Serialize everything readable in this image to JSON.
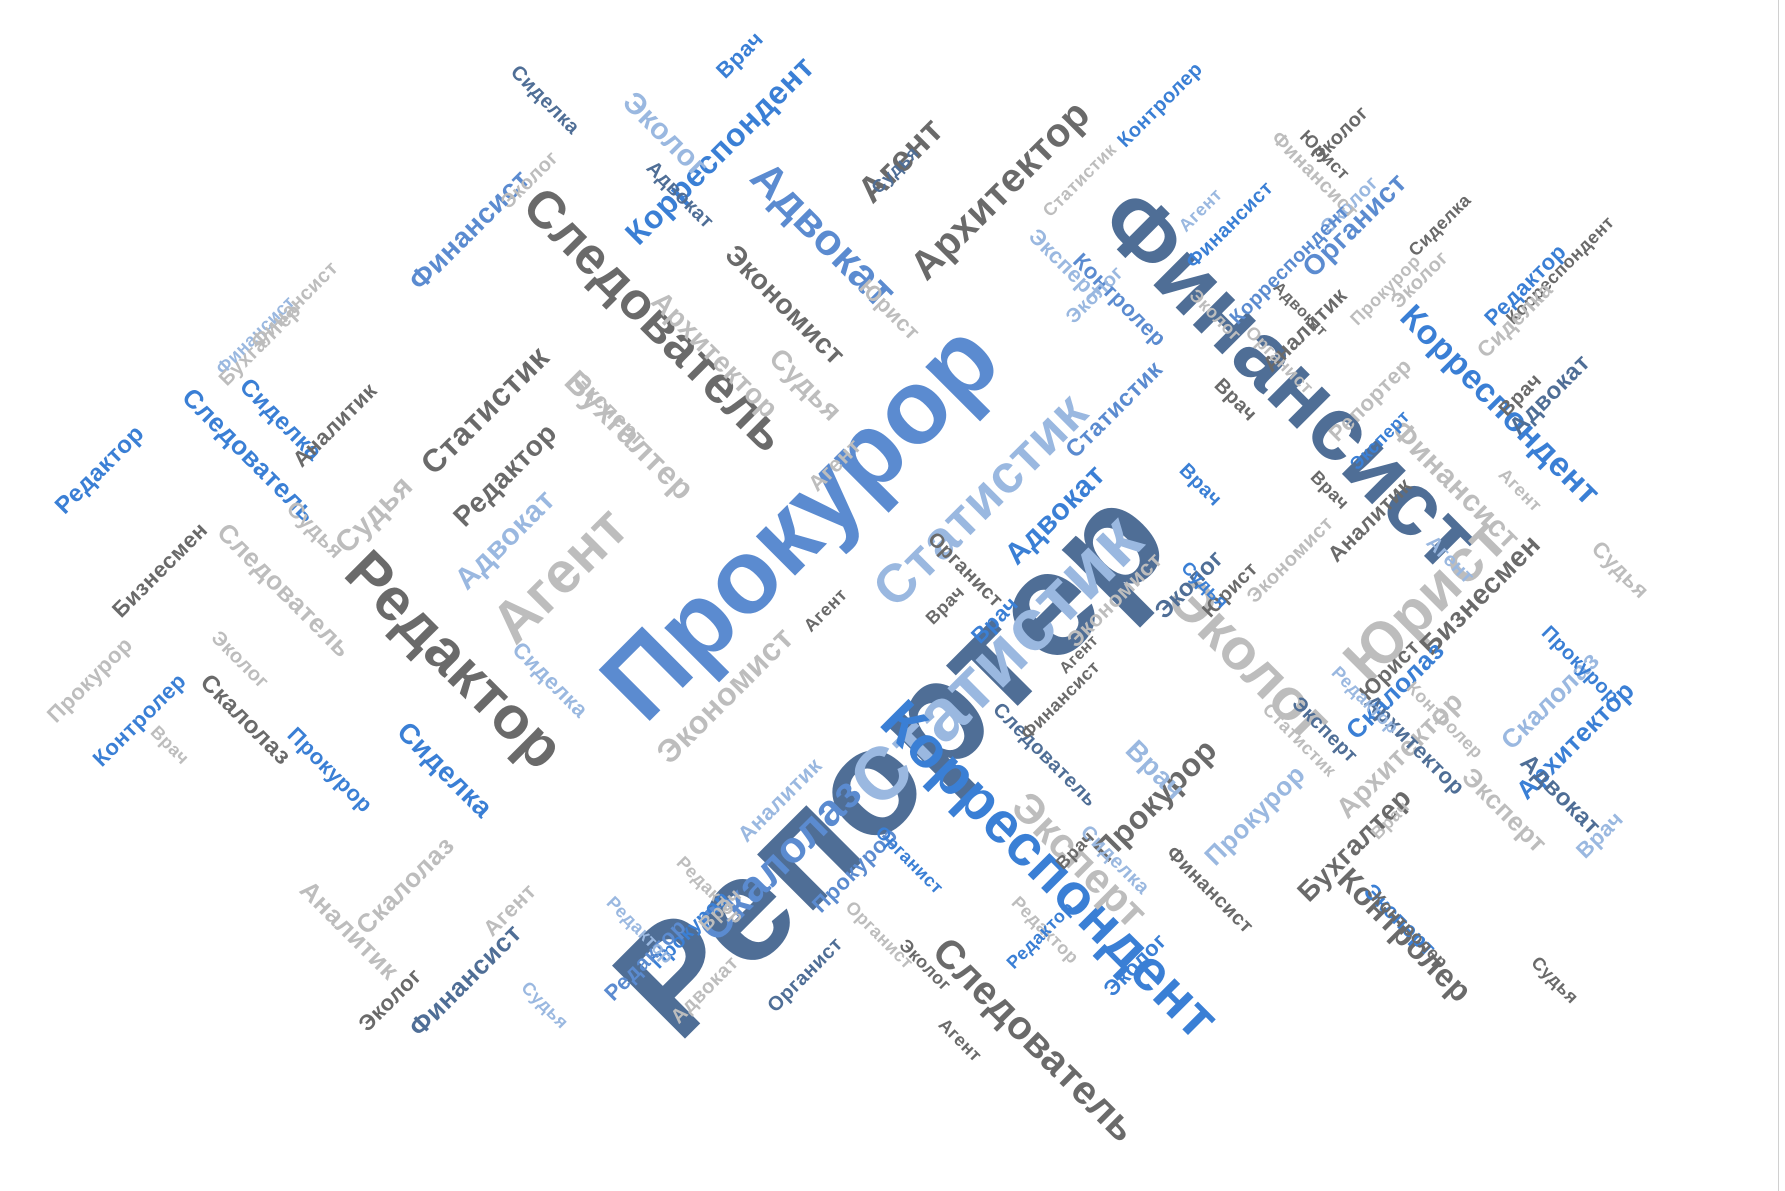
{
  "palette": {
    "blue_bright": "#3a7fd5",
    "blue_mid": "#5b8bd0",
    "blue_light": "#9ab8e0",
    "slate": "#4f6e96",
    "gray_dark": "#6a6a6a",
    "gray_mid": "#8a8a8a",
    "gray_light": "#bdbdbd",
    "background": "#ffffff"
  },
  "words": [
    {
      "text": "Репортер"
    },
    {
      "text": "Прокурор"
    },
    {
      "text": "Финансист"
    },
    {
      "text": "Статистик"
    },
    {
      "text": "Статистик"
    },
    {
      "text": "Корреспондент"
    },
    {
      "text": "Редактор"
    },
    {
      "text": "Следователь"
    },
    {
      "text": "Агент"
    },
    {
      "text": "Эколог"
    },
    {
      "text": "Юрист"
    },
    {
      "text": "Скалолаз"
    },
    {
      "text": "Эксперт"
    },
    {
      "text": "Архитектор"
    },
    {
      "text": "Адвокат"
    },
    {
      "text": "Агент"
    },
    {
      "text": "Корреспондент"
    },
    {
      "text": "Следователь"
    },
    {
      "text": "Экономист"
    },
    {
      "text": "Бухгалтер"
    },
    {
      "text": "Финансист"
    },
    {
      "text": "Корреспондент"
    },
    {
      "text": "Контролер"
    },
    {
      "text": "Прокурор"
    },
    {
      "text": "Органист"
    },
    {
      "text": "Адвокат"
    },
    {
      "text": "Статистик"
    },
    {
      "text": "Экономист"
    },
    {
      "text": "Архитектор"
    },
    {
      "text": "Финансист"
    },
    {
      "text": "Бизнесмен"
    },
    {
      "text": "Бизнесмен"
    },
    {
      "text": "Финансист"
    },
    {
      "text": "Архитектор"
    },
    {
      "text": "Сиделка"
    },
    {
      "text": "Редактор"
    },
    {
      "text": "Скалолаз"
    },
    {
      "text": "Следователь"
    },
    {
      "text": "Скалолаз"
    },
    {
      "text": "Аналитик"
    },
    {
      "text": "Судья"
    },
    {
      "text": "Эколог"
    },
    {
      "text": "Архитектор"
    },
    {
      "text": "Врач"
    },
    {
      "text": "Бухгалтер"
    },
    {
      "text": "Эксперт"
    },
    {
      "text": "Скалолаз"
    },
    {
      "text": "Репортер"
    },
    {
      "text": "Адвокат"
    },
    {
      "text": "Юрист"
    },
    {
      "text": "Финансист"
    },
    {
      "text": "Эколог"
    },
    {
      "text": "Судья"
    },
    {
      "text": "Прокурор"
    },
    {
      "text": "Финансист"
    },
    {
      "text": "Сиделка"
    },
    {
      "text": "Следователь"
    },
    {
      "text": "Сиделка"
    },
    {
      "text": "Редактор"
    },
    {
      "text": "Контролер"
    },
    {
      "text": "Аналитик"
    },
    {
      "text": "Эколог"
    },
    {
      "text": "Статистик"
    },
    {
      "text": "Адвокат"
    },
    {
      "text": "Судья"
    },
    {
      "text": "Прокурор"
    },
    {
      "text": "Агент"
    },
    {
      "text": "Адвокат"
    },
    {
      "text": "Органист"
    },
    {
      "text": "Скалолаз"
    },
    {
      "text": "Прокурор"
    },
    {
      "text": "Прокурор"
    },
    {
      "text": "Эксперт"
    },
    {
      "text": "Эксперт"
    },
    {
      "text": "Судья"
    },
    {
      "text": "Корреспондент"
    },
    {
      "text": "Контролер"
    },
    {
      "text": "Эксперт"
    },
    {
      "text": "Архитектор"
    },
    {
      "text": "Юрист"
    },
    {
      "text": "Эколог"
    },
    {
      "text": "Аналитик"
    },
    {
      "text": "Сиделка"
    },
    {
      "text": "Редактор"
    },
    {
      "text": "Контролер"
    },
    {
      "text": "Врач"
    },
    {
      "text": "Врач"
    },
    {
      "text": "Врач"
    },
    {
      "text": "Врач"
    },
    {
      "text": "Агент"
    },
    {
      "text": "Экономист"
    },
    {
      "text": "Судья"
    },
    {
      "text": "Эксперт"
    },
    {
      "text": "Статистик"
    },
    {
      "text": "Следователь"
    },
    {
      "text": "Эколог"
    },
    {
      "text": "Эколог"
    },
    {
      "text": "Врач"
    },
    {
      "text": "Органист"
    },
    {
      "text": "Юрист"
    },
    {
      "text": "Финансист"
    },
    {
      "text": "Эколог"
    },
    {
      "text": "Судья"
    },
    {
      "text": "Сиделка"
    },
    {
      "text": "Прокурор"
    },
    {
      "text": "Врач"
    },
    {
      "text": "Сиделка"
    },
    {
      "text": "Агент"
    },
    {
      "text": "Эколог"
    },
    {
      "text": "Статистик"
    },
    {
      "text": "Эксперт"
    },
    {
      "text": "Финансист"
    },
    {
      "text": "Финансист"
    },
    {
      "text": "Корреспондент"
    },
    {
      "text": "Органист"
    },
    {
      "text": "Эколог"
    },
    {
      "text": "Агент"
    },
    {
      "text": "Аналитик"
    },
    {
      "text": "Адвокат"
    },
    {
      "text": "Врач"
    },
    {
      "text": "Агент"
    },
    {
      "text": "Эколог"
    },
    {
      "text": "Эколог"
    },
    {
      "text": "Контролер"
    },
    {
      "text": "Редактор"
    },
    {
      "text": "Экономист"
    },
    {
      "text": "Юрист"
    },
    {
      "text": "Бухгалтер"
    },
    {
      "text": "Аналитик"
    },
    {
      "text": "Сиделка"
    },
    {
      "text": "Контролер"
    },
    {
      "text": "Финансист"
    },
    {
      "text": "Адвокат"
    },
    {
      "text": "Прокурор"
    },
    {
      "text": "Прокурор"
    },
    {
      "text": "Редактор"
    },
    {
      "text": "Адвокат"
    },
    {
      "text": "Редактор"
    },
    {
      "text": "Редактор"
    },
    {
      "text": "Редактор"
    },
    {
      "text": "Судья"
    },
    {
      "text": "Врач"
    },
    {
      "text": "Агент"
    },
    {
      "text": "Врач"
    },
    {
      "text": "Врач"
    },
    {
      "text": "Эколог"
    },
    {
      "text": "Агент"
    },
    {
      "text": "Судья"
    },
    {
      "text": "Врач"
    },
    {
      "text": "Агент"
    },
    {
      "text": "Органист"
    },
    {
      "text": "Органист"
    },
    {
      "text": "Редактор"
    },
    {
      "text": "Врач"
    },
    {
      "text": "Эксперт"
    },
    {
      "text": "Редактор"
    },
    {
      "text": "Судья"
    }
  ]
}
